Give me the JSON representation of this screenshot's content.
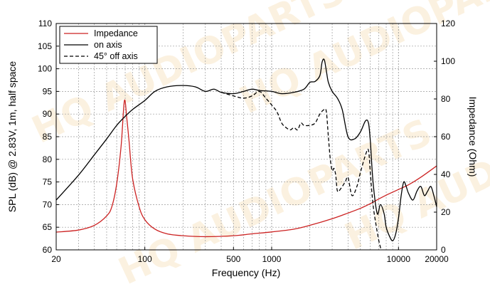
{
  "chart_data": {
    "type": "line",
    "xlabel": "Frequency (Hz)",
    "ylabel": "SPL (dB) @ 2.83V, 1m, half space",
    "y2label": "Impedance (Ohm)",
    "xscale": "log",
    "xlim": [
      20,
      20000
    ],
    "ylim": [
      60,
      110
    ],
    "y2lim": [
      0,
      120
    ],
    "x_ticks": [
      {
        "value": 20,
        "label": "20"
      },
      {
        "value": 100,
        "label": "100"
      },
      {
        "value": 500,
        "label": "500"
      },
      {
        "value": 1000,
        "label": "1000"
      },
      {
        "value": 10000,
        "label": "10000"
      },
      {
        "value": 20000,
        "label": "20000"
      }
    ],
    "y_ticks": [
      60,
      65,
      70,
      75,
      80,
      85,
      90,
      95,
      100,
      105,
      110
    ],
    "y2_ticks": [
      0,
      20,
      40,
      60,
      80,
      100,
      120
    ],
    "grid": true,
    "legend_position": "top-left",
    "watermark": "HQ AUDIOPARTS",
    "series": [
      {
        "name": "Impedance",
        "axis": "right",
        "color": "#cc2222",
        "dash": "solid",
        "points": [
          [
            20,
            9.4
          ],
          [
            30,
            10.5
          ],
          [
            40,
            13
          ],
          [
            50,
            18
          ],
          [
            55,
            23
          ],
          [
            60,
            35
          ],
          [
            65,
            55
          ],
          [
            69,
            79
          ],
          [
            72,
            70
          ],
          [
            75,
            58
          ],
          [
            80,
            38
          ],
          [
            90,
            23
          ],
          [
            100,
            16
          ],
          [
            120,
            11
          ],
          [
            150,
            8.5
          ],
          [
            200,
            7.5
          ],
          [
            300,
            7
          ],
          [
            500,
            7.5
          ],
          [
            700,
            8.5
          ],
          [
            1000,
            9.5
          ],
          [
            1500,
            11
          ],
          [
            2000,
            13
          ],
          [
            3000,
            16.5
          ],
          [
            4000,
            19.5
          ],
          [
            5000,
            22
          ],
          [
            6000,
            24.5
          ],
          [
            7000,
            27
          ],
          [
            8000,
            29
          ],
          [
            10000,
            32
          ],
          [
            12000,
            34.5
          ],
          [
            15000,
            38.5
          ],
          [
            20000,
            44.5
          ]
        ]
      },
      {
        "name": "on axis",
        "axis": "left",
        "color": "#000000",
        "dash": "solid",
        "points": [
          [
            20,
            71
          ],
          [
            30,
            76.5
          ],
          [
            40,
            81
          ],
          [
            50,
            84.5
          ],
          [
            60,
            87.5
          ],
          [
            70,
            89.5
          ],
          [
            80,
            91
          ],
          [
            100,
            93
          ],
          [
            120,
            95
          ],
          [
            150,
            96
          ],
          [
            200,
            96.3
          ],
          [
            250,
            96
          ],
          [
            300,
            95
          ],
          [
            350,
            95.5
          ],
          [
            400,
            94.8
          ],
          [
            500,
            94.5
          ],
          [
            600,
            95
          ],
          [
            700,
            95.5
          ],
          [
            800,
            95.2
          ],
          [
            1000,
            95
          ],
          [
            1200,
            94.5
          ],
          [
            1500,
            94.8
          ],
          [
            1800,
            95.5
          ],
          [
            2000,
            97
          ],
          [
            2200,
            97.2
          ],
          [
            2400,
            98.5
          ],
          [
            2500,
            101.5
          ],
          [
            2600,
            102
          ],
          [
            2700,
            99.5
          ],
          [
            2800,
            97
          ],
          [
            3000,
            95
          ],
          [
            3300,
            93.5
          ],
          [
            3600,
            91
          ],
          [
            4000,
            85
          ],
          [
            4500,
            84.5
          ],
          [
            5000,
            86
          ],
          [
            5500,
            88.5
          ],
          [
            5800,
            88
          ],
          [
            6000,
            84
          ],
          [
            6300,
            75
          ],
          [
            6800,
            68
          ],
          [
            7200,
            70
          ],
          [
            7700,
            68
          ],
          [
            8000,
            65
          ],
          [
            8500,
            63
          ],
          [
            9000,
            62
          ],
          [
            9500,
            63.5
          ],
          [
            10000,
            67
          ],
          [
            10500,
            72
          ],
          [
            11000,
            75
          ],
          [
            11500,
            74
          ],
          [
            12000,
            72.5
          ],
          [
            13000,
            71
          ],
          [
            14000,
            73
          ],
          [
            15000,
            74
          ],
          [
            16000,
            72
          ],
          [
            17000,
            73
          ],
          [
            18000,
            74
          ],
          [
            19000,
            72
          ],
          [
            20000,
            69.5
          ]
        ]
      },
      {
        "name": "45° off axis",
        "axis": "left",
        "color": "#000000",
        "dash": "dashed",
        "points": [
          [
            400,
            94.8
          ],
          [
            500,
            94
          ],
          [
            600,
            93.5
          ],
          [
            700,
            94
          ],
          [
            800,
            95
          ],
          [
            900,
            93.5
          ],
          [
            1000,
            92
          ],
          [
            1100,
            90.5
          ],
          [
            1200,
            88
          ],
          [
            1300,
            87
          ],
          [
            1400,
            86.5
          ],
          [
            1500,
            87
          ],
          [
            1600,
            86.5
          ],
          [
            1700,
            88
          ],
          [
            1800,
            87.5
          ],
          [
            2000,
            87.5
          ],
          [
            2200,
            88
          ],
          [
            2400,
            90
          ],
          [
            2600,
            91
          ],
          [
            2700,
            90.5
          ],
          [
            2800,
            85
          ],
          [
            2900,
            80
          ],
          [
            3000,
            77.5
          ],
          [
            3100,
            78
          ],
          [
            3200,
            76.5
          ],
          [
            3300,
            73
          ],
          [
            3500,
            73.5
          ],
          [
            3800,
            75
          ],
          [
            4000,
            76
          ],
          [
            4300,
            72
          ],
          [
            4700,
            74
          ],
          [
            5000,
            77
          ],
          [
            5500,
            81
          ],
          [
            5800,
            82
          ],
          [
            6000,
            77
          ],
          [
            6300,
            70
          ],
          [
            6700,
            65
          ],
          [
            7000,
            62
          ],
          [
            7300,
            60
          ]
        ]
      }
    ]
  }
}
